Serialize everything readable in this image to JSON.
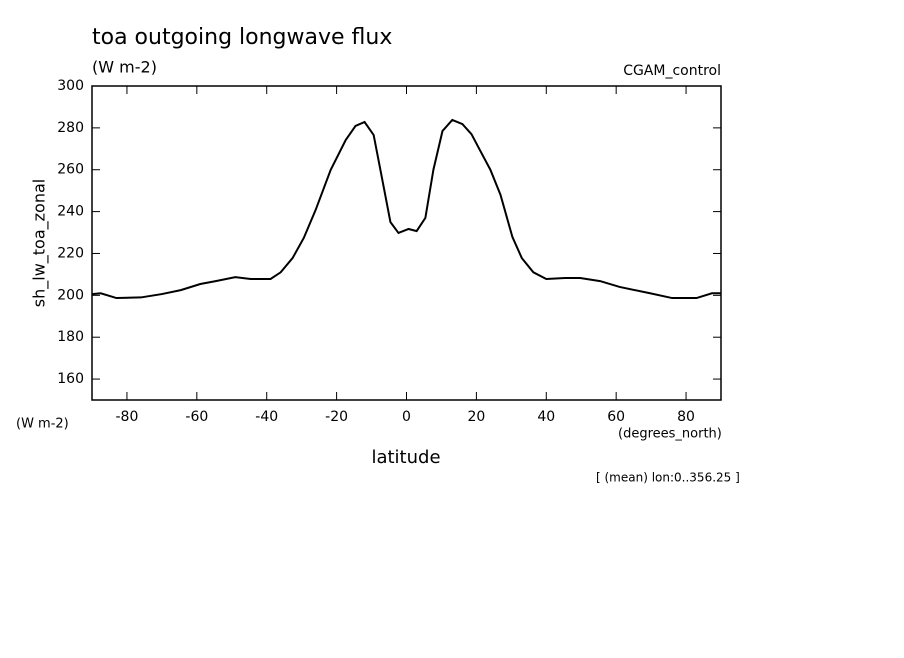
{
  "chart_data": {
    "type": "line",
    "title": "toa outgoing longwave flux",
    "units_label": "(W m-2)",
    "dataset_label": "CGAM_control",
    "y_axis_label": "sh_lw_toa_zonal",
    "y_units_label": "(W m-2)",
    "x_units_label": "(degrees_north)",
    "x_axis_label": "latitude",
    "annotation": "[ (mean) lon:0..356.25 ]",
    "x": [
      -90,
      -87.5,
      -83,
      -76,
      -70,
      -64.6,
      -59,
      -54.6,
      -49,
      -44.6,
      -38.9,
      -36,
      -32.6,
      -29.4,
      -26,
      -21.7,
      -17.4,
      -14.6,
      -12,
      -9.4,
      -6.9,
      -4.6,
      -2.3,
      0.6,
      2.9,
      5.4,
      7.7,
      10.3,
      13.1,
      16,
      18.6,
      21,
      24,
      26.9,
      30.3,
      33,
      36.3,
      40,
      45.4,
      49.7,
      55.4,
      61,
      69.7,
      76,
      83,
      87.4,
      90
    ],
    "series": [
      {
        "name": "sh_lw_toa_zonal",
        "color": "#000000",
        "values": [
          200.6,
          201,
          198.7,
          199,
          200.6,
          202.5,
          205.4,
          206.8,
          208.7,
          207.8,
          207.8,
          211,
          217.8,
          227.4,
          240.8,
          259.9,
          274.2,
          280.9,
          282.8,
          276.6,
          255,
          235,
          229.8,
          231.7,
          230.7,
          237,
          260,
          278.5,
          283.8,
          281.8,
          277,
          269.4,
          260,
          248,
          227.9,
          217.8,
          211,
          207.8,
          208.3,
          208.3,
          206.8,
          204,
          201,
          198.7,
          198.7,
          201,
          201
        ]
      }
    ],
    "xlim": [
      -90,
      90
    ],
    "xticks": [
      -80,
      -60,
      -40,
      -20,
      0,
      20,
      40,
      60,
      80
    ],
    "ylim": [
      150,
      300
    ],
    "yticks": [
      160,
      180,
      200,
      220,
      240,
      260,
      280,
      300
    ]
  }
}
